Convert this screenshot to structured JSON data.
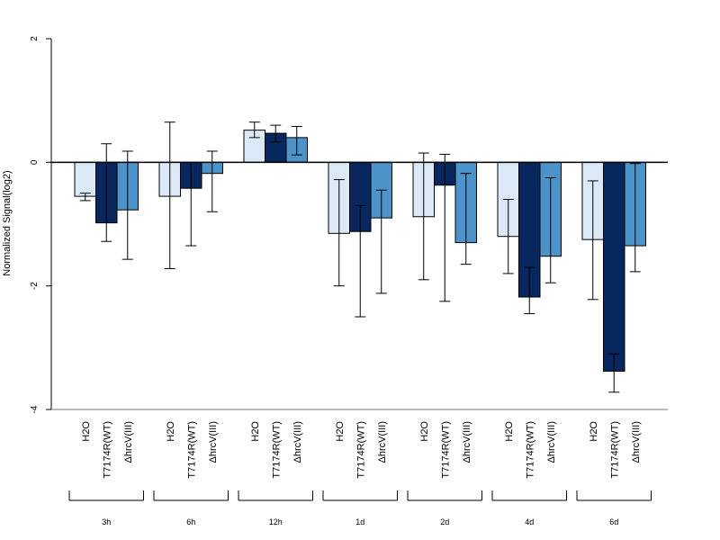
{
  "chart_data": {
    "type": "bar",
    "ylabel": "Normalized Signal(log2)",
    "ylim": [
      -4,
      2
    ],
    "yticks": [
      2,
      0,
      -2,
      -4
    ],
    "groups": [
      "3h",
      "6h",
      "12h",
      "1d",
      "2d",
      "4d",
      "6d"
    ],
    "category_labels": [
      "H2O",
      "T7174R(WT)",
      "ΔhrcV(III)"
    ],
    "series": [
      {
        "name": "H2O",
        "color": "#dbe9f6",
        "values": [
          -0.55,
          -0.55,
          0.52,
          -1.15,
          -0.88,
          -1.2,
          -1.25
        ],
        "err_low": [
          -0.62,
          -1.72,
          0.4,
          -2.0,
          -1.9,
          -1.8,
          -2.22
        ],
        "err_high": [
          -0.5,
          0.65,
          0.65,
          -0.28,
          0.15,
          -0.6,
          -0.3
        ]
      },
      {
        "name": "T7174R(WT)",
        "color": "#08275e",
        "values": [
          -0.98,
          -0.42,
          0.47,
          -1.12,
          -0.37,
          -2.18,
          -3.38
        ],
        "err_low": [
          -1.28,
          -1.35,
          0.33,
          -2.5,
          -2.25,
          -2.45,
          -3.72
        ],
        "err_high": [
          0.3,
          0.0,
          0.6,
          -0.7,
          0.13,
          -1.7,
          -3.1
        ]
      },
      {
        "name": "ΔhrcV(III)",
        "color": "#4b93c8",
        "values": [
          -0.77,
          -0.18,
          0.4,
          -0.9,
          -1.3,
          -1.52,
          -1.35
        ],
        "err_low": [
          -1.57,
          -0.8,
          0.12,
          -2.12,
          -1.65,
          -1.95,
          -1.77
        ],
        "err_high": [
          0.18,
          0.18,
          0.58,
          -0.45,
          -0.18,
          -0.25,
          -0.02
        ]
      }
    ]
  }
}
